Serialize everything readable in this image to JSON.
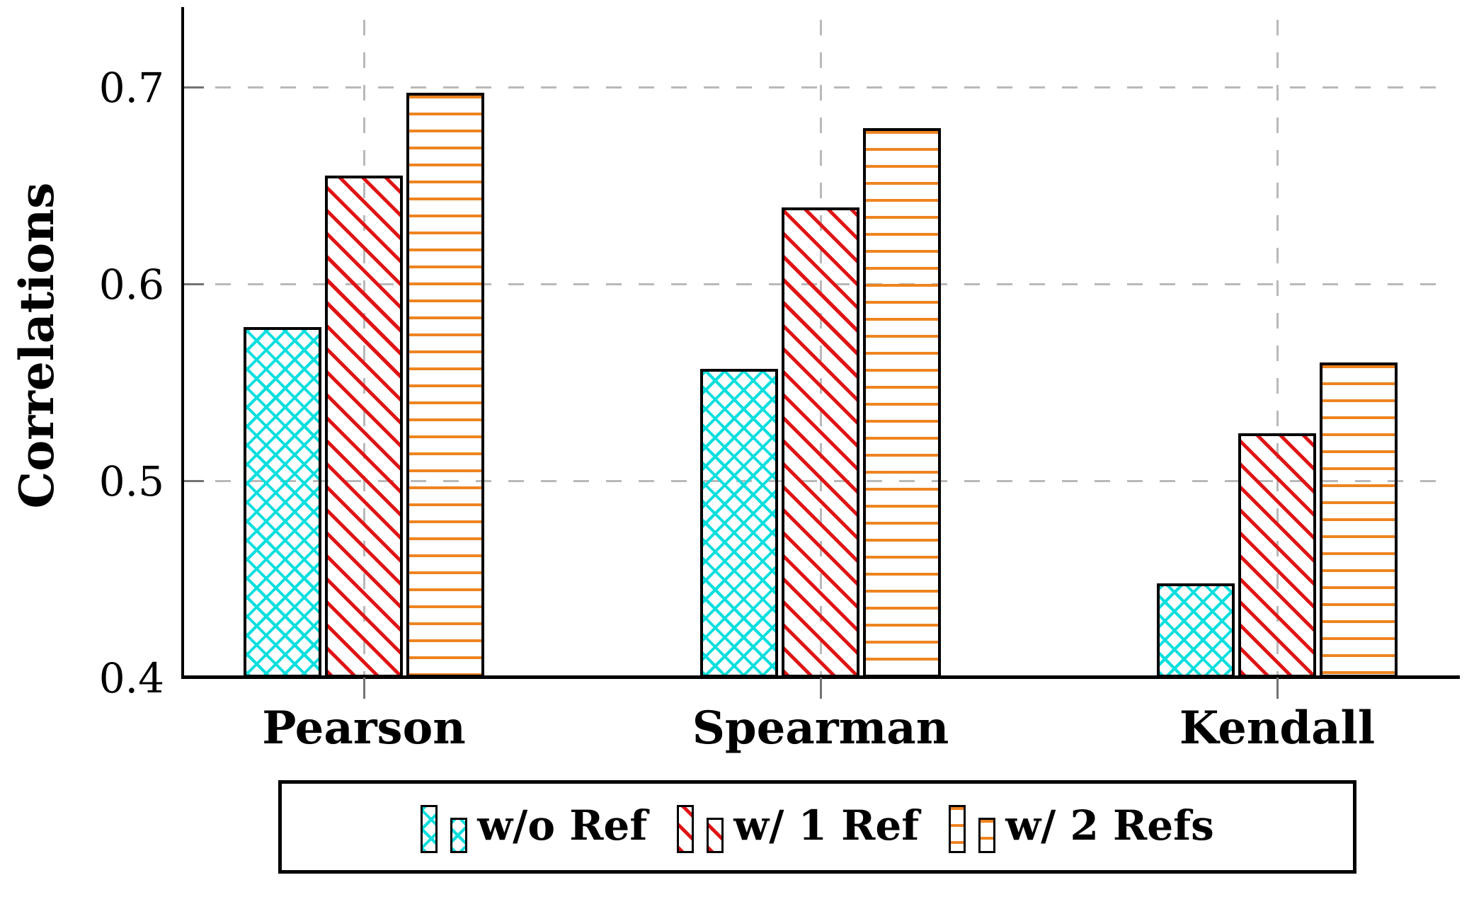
{
  "figure": {
    "background": "#ffffff"
  },
  "chart_data": {
    "type": "bar",
    "title": "",
    "xlabel": "",
    "ylabel": "Correlations",
    "categories": [
      "Pearson",
      "Spearman",
      "Kendall"
    ],
    "series": [
      {
        "name": "w/o Ref",
        "pattern": "crosshatch",
        "color": "#0adede",
        "values": [
          0.578,
          0.557,
          0.448
        ]
      },
      {
        "name": "w/ 1 Ref",
        "pattern": "diagonal-nw",
        "color": "#e01414",
        "values": [
          0.655,
          0.639,
          0.524
        ]
      },
      {
        "name": "w/ 2 Refs",
        "pattern": "horizontal",
        "color": "#ee8420",
        "values": [
          0.697,
          0.679,
          0.56
        ]
      }
    ],
    "ylim": [
      0.4,
      0.745
    ],
    "yticks": [
      0.4,
      0.5,
      0.6,
      0.7
    ],
    "grid": true,
    "grid_style": "dashed",
    "legend_position": "below",
    "colors": {
      "grid": "#b9b9b9",
      "tick": "#737373",
      "axis": "#000000",
      "bar_border": "#000000"
    }
  }
}
